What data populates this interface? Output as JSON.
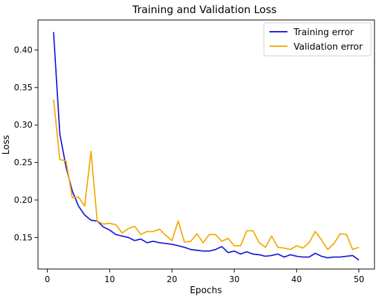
{
  "chart_data": {
    "type": "line",
    "title": "Training and Validation Loss",
    "xlabel": "Epochs",
    "ylabel": "Loss",
    "xlim": [
      -1.5,
      52.5
    ],
    "ylim": [
      0.108,
      0.44
    ],
    "xticks": [
      0,
      10,
      20,
      30,
      40,
      50
    ],
    "yticks": [
      0.15,
      0.2,
      0.25,
      0.3,
      0.35,
      0.4
    ],
    "ytick_labels": [
      "0.15",
      "0.20",
      "0.25",
      "0.30",
      "0.35",
      "0.40"
    ],
    "grid": false,
    "legend_position": "top-right",
    "x": [
      1,
      2,
      3,
      4,
      5,
      6,
      7,
      8,
      9,
      10,
      11,
      12,
      13,
      14,
      15,
      16,
      17,
      18,
      19,
      20,
      21,
      22,
      23,
      24,
      25,
      26,
      27,
      28,
      29,
      30,
      31,
      32,
      33,
      34,
      35,
      36,
      37,
      38,
      39,
      40,
      41,
      42,
      43,
      44,
      45,
      46,
      47,
      48,
      49,
      50
    ],
    "series": [
      {
        "name": "Training error",
        "color": "#1a1adb",
        "values": [
          0.424,
          0.288,
          0.244,
          0.212,
          0.192,
          0.18,
          0.173,
          0.172,
          0.164,
          0.16,
          0.154,
          0.152,
          0.15,
          0.146,
          0.148,
          0.143,
          0.145,
          0.143,
          0.142,
          0.141,
          0.139,
          0.137,
          0.134,
          0.133,
          0.132,
          0.132,
          0.134,
          0.138,
          0.13,
          0.132,
          0.128,
          0.131,
          0.128,
          0.127,
          0.125,
          0.126,
          0.128,
          0.124,
          0.127,
          0.125,
          0.124,
          0.124,
          0.129,
          0.125,
          0.123,
          0.124,
          0.124,
          0.125,
          0.126,
          0.12
        ]
      },
      {
        "name": "Validation error",
        "color": "#f5a800",
        "values": [
          0.334,
          0.254,
          0.252,
          0.203,
          0.204,
          0.192,
          0.265,
          0.172,
          0.168,
          0.169,
          0.167,
          0.156,
          0.162,
          0.165,
          0.154,
          0.158,
          0.158,
          0.161,
          0.153,
          0.146,
          0.172,
          0.144,
          0.145,
          0.155,
          0.143,
          0.154,
          0.154,
          0.145,
          0.149,
          0.139,
          0.139,
          0.159,
          0.159,
          0.143,
          0.137,
          0.152,
          0.137,
          0.136,
          0.134,
          0.139,
          0.136,
          0.143,
          0.158,
          0.147,
          0.134,
          0.142,
          0.155,
          0.154,
          0.134,
          0.137
        ]
      }
    ]
  }
}
